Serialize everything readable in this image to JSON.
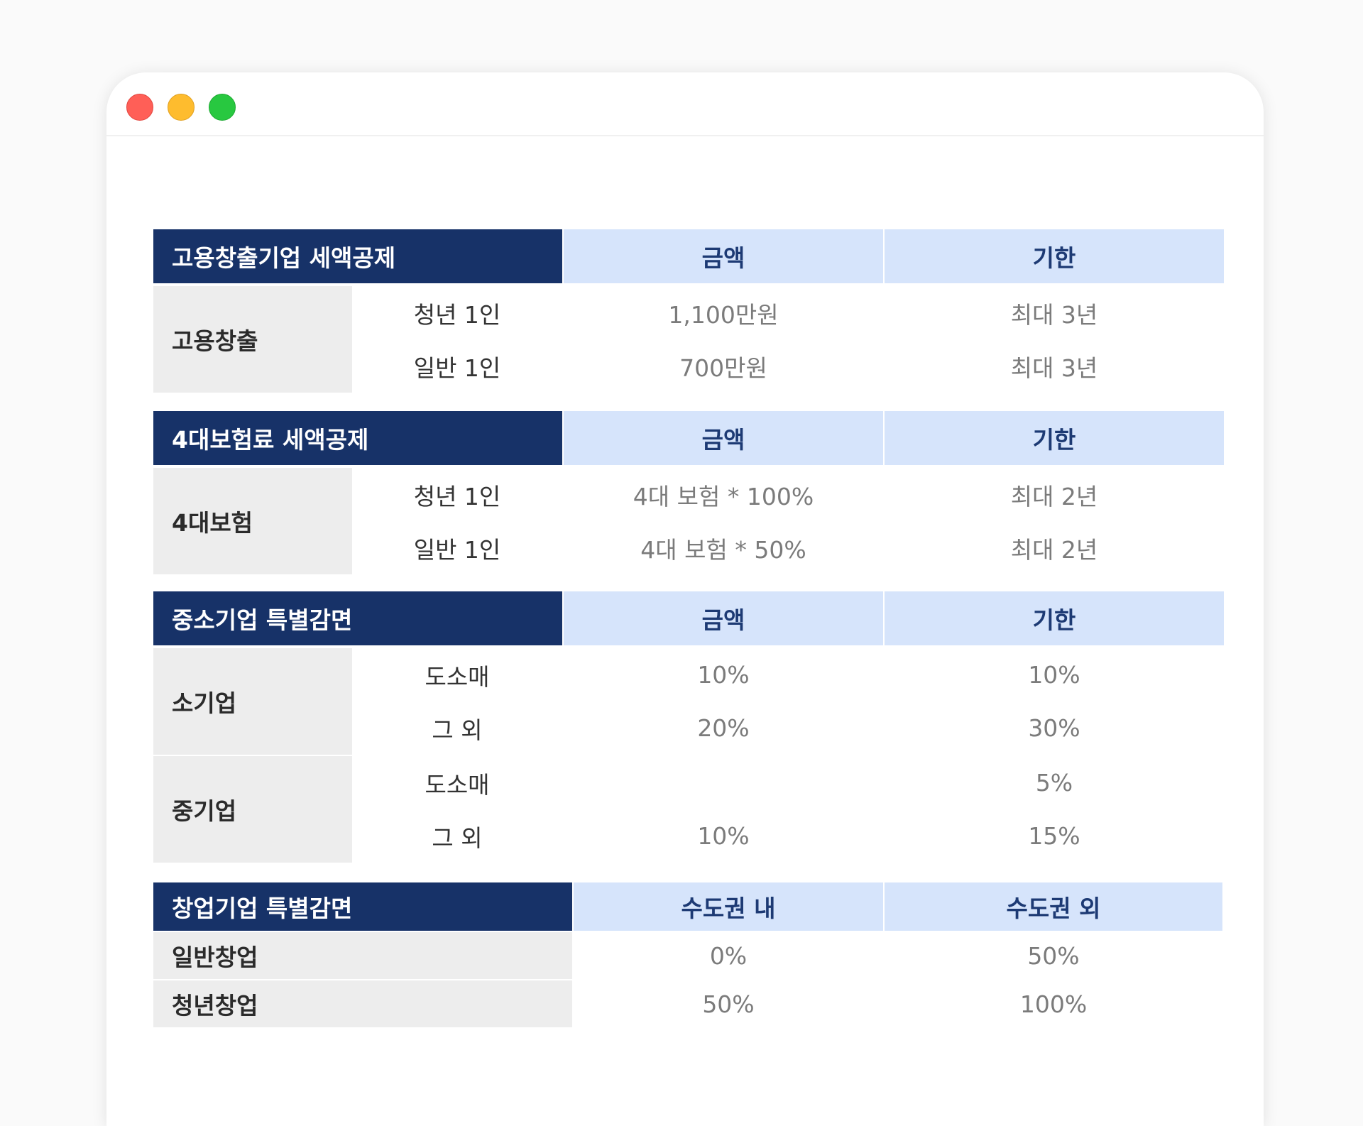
{
  "window": {
    "controls": [
      "close",
      "minimize",
      "zoom"
    ]
  },
  "colors": {
    "header_dark": "#173268",
    "header_light": "#d6e4fb",
    "category_bg": "#ededed"
  },
  "sections": [
    {
      "title": "고용창출기업 세액공제",
      "col1": "금액",
      "col2": "기한",
      "groups": [
        {
          "label": "고용창출",
          "rows": [
            {
              "sub": "청년 1인",
              "v1": "1,100만원",
              "v2": "최대 3년"
            },
            {
              "sub": "일반 1인",
              "v1": "700만원",
              "v2": "최대 3년"
            }
          ]
        }
      ]
    },
    {
      "title": "4대보험료 세액공제",
      "col1": "금액",
      "col2": "기한",
      "groups": [
        {
          "label": "4대보험",
          "rows": [
            {
              "sub": "청년 1인",
              "v1": "4대 보험 * 100%",
              "v2": "최대 2년"
            },
            {
              "sub": "일반 1인",
              "v1": "4대 보험 * 50%",
              "v2": "최대 2년"
            }
          ]
        }
      ]
    },
    {
      "title": "중소기업 특별감면",
      "col1": "금액",
      "col2": "기한",
      "groups": [
        {
          "label": "소기업",
          "rows": [
            {
              "sub": "도소매",
              "v1": "10%",
              "v2": "10%"
            },
            {
              "sub": "그 외",
              "v1": "20%",
              "v2": "30%"
            }
          ]
        },
        {
          "label": "중기업",
          "rows": [
            {
              "sub": "도소매",
              "v1": "",
              "v2": "5%"
            },
            {
              "sub": "그 외",
              "v1": "10%",
              "v2": "15%"
            }
          ]
        }
      ]
    },
    {
      "title": "창업기업 특별감면",
      "col1": "수도권 내",
      "col2": "수도권 외",
      "rows": [
        {
          "label": "일반창업",
          "v1": "0%",
          "v2": "50%"
        },
        {
          "label": "청년창업",
          "v1": "50%",
          "v2": "100%"
        }
      ]
    }
  ]
}
